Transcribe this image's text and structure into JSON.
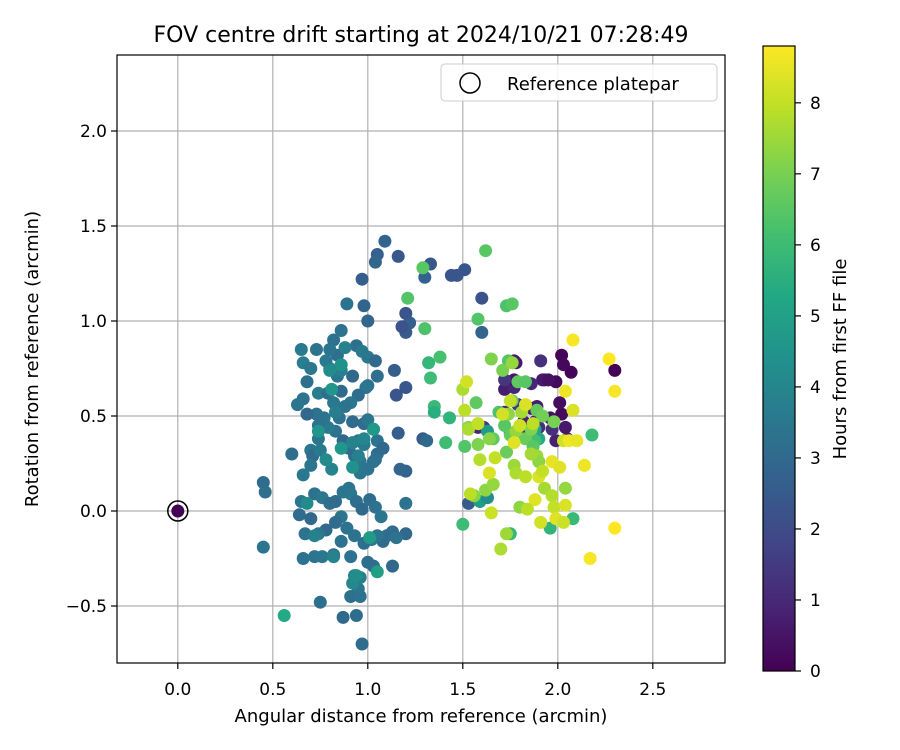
{
  "chart_data": {
    "type": "scatter",
    "title": "FOV centre drift starting at 2024/10/21 07:28:49",
    "xlabel": "Angular distance from reference (arcmin)",
    "ylabel": "Rotation from reference (arcmin)",
    "xlim": [
      -0.32,
      2.88
    ],
    "ylim": [
      -0.8,
      2.4
    ],
    "xticks": [
      0.0,
      0.5,
      1.0,
      1.5,
      2.0,
      2.5
    ],
    "yticks": [
      -0.5,
      0.0,
      0.5,
      1.0,
      1.5,
      2.0
    ],
    "xtick_labels": [
      "0.0",
      "0.5",
      "1.0",
      "1.5",
      "2.0",
      "2.5"
    ],
    "ytick_labels": [
      "−0.5",
      "0.0",
      "0.5",
      "1.0",
      "1.5",
      "2.0"
    ],
    "grid": true,
    "legend": {
      "placement": "top-right",
      "entries": [
        "Reference platepar"
      ]
    },
    "colorbar": {
      "label": "Hours from first FF file",
      "colormap": "viridis",
      "min": 0,
      "max": 8.8,
      "ticks": [
        0,
        1,
        2,
        3,
        4,
        5,
        6,
        7,
        8
      ],
      "tick_labels": [
        "0",
        "1",
        "2",
        "3",
        "4",
        "5",
        "6",
        "7",
        "8"
      ]
    },
    "reference_point": {
      "x": 0.0,
      "y": 0.0,
      "hours": 0.0
    },
    "points": [
      [
        1.99,
        0.68,
        0.2
      ],
      [
        2.02,
        0.82,
        0.1
      ],
      [
        2.07,
        0.73,
        0.1
      ],
      [
        2.03,
        0.77,
        0.2
      ],
      [
        1.93,
        0.69,
        0.5
      ],
      [
        2.01,
        0.57,
        0.3
      ],
      [
        1.92,
        0.69,
        0.6
      ],
      [
        1.77,
        0.79,
        0.5
      ],
      [
        1.72,
        0.64,
        0.7
      ],
      [
        1.82,
        0.47,
        0.8
      ],
      [
        1.72,
        0.52,
        0.9
      ],
      [
        1.86,
        0.54,
        0.6
      ],
      [
        1.89,
        0.55,
        0.7
      ],
      [
        1.77,
        0.65,
        0.9
      ],
      [
        1.86,
        0.67,
        1.0
      ],
      [
        1.96,
        0.49,
        0.4
      ],
      [
        2.02,
        0.51,
        0.2
      ],
      [
        1.95,
        0.69,
        0.4
      ],
      [
        1.77,
        0.69,
        0.5
      ],
      [
        1.78,
        0.78,
        0.6
      ],
      [
        1.88,
        0.47,
        0.7
      ],
      [
        1.58,
        0.44,
        0.9
      ],
      [
        1.9,
        0.44,
        1.2
      ],
      [
        2.04,
        0.44,
        0.6
      ],
      [
        1.99,
        0.37,
        0.8
      ],
      [
        1.91,
        0.79,
        1.2
      ],
      [
        2.05,
        0.38,
        0.6
      ],
      [
        1.61,
        0.44,
        1.3
      ],
      [
        1.79,
        0.56,
        1.3
      ],
      [
        1.72,
        0.69,
        1.4
      ],
      [
        1.75,
        0.41,
        1.5
      ],
      [
        1.82,
        0.41,
        1.6
      ],
      [
        1.97,
        0.43,
        1.2
      ],
      [
        2.3,
        0.74,
        0.1
      ],
      [
        1.53,
        0.04,
        2.5
      ],
      [
        1.6,
        1.12,
        2.2
      ],
      [
        1.6,
        0.94,
        2.8
      ],
      [
        1.51,
        1.27,
        2.3
      ],
      [
        1.47,
        1.24,
        2.4
      ],
      [
        1.44,
        1.24,
        2.3
      ],
      [
        1.33,
        1.3,
        2.4
      ],
      [
        1.3,
        1.23,
        2.7
      ],
      [
        1.22,
        0.99,
        2.7
      ],
      [
        1.2,
        0.94,
        2.5
      ],
      [
        1.2,
        1.04,
        2.3
      ],
      [
        1.18,
        0.97,
        2.2
      ],
      [
        1.2,
        0.65,
        2.4
      ],
      [
        1.14,
        0.74,
        2.6
      ],
      [
        1.15,
        0.61,
        2.3
      ],
      [
        1.29,
        0.38,
        2.5
      ],
      [
        1.31,
        0.37,
        3.0
      ],
      [
        1.2,
        0.21,
        2.8
      ],
      [
        1.17,
        0.22,
        2.9
      ],
      [
        1.16,
        0.41,
        2.6
      ],
      [
        1.16,
        1.34,
        2.4
      ],
      [
        1.09,
        1.42,
        2.8
      ],
      [
        1.05,
        1.35,
        2.7
      ],
      [
        1.04,
        1.31,
        2.9
      ],
      [
        0.97,
        1.22,
        2.6
      ],
      [
        0.98,
        1.08,
        2.8
      ],
      [
        1.0,
        1.0,
        2.9
      ],
      [
        0.89,
        1.09,
        3.3
      ],
      [
        0.86,
        0.95,
        3.3
      ],
      [
        0.94,
        0.87,
        3.2
      ],
      [
        0.97,
        0.84,
        3.6
      ],
      [
        1.0,
        0.81,
        3.5
      ],
      [
        1.04,
        0.79,
        3.0
      ],
      [
        1.05,
        0.71,
        3.2
      ],
      [
        1.0,
        0.66,
        3.3
      ],
      [
        0.99,
        0.65,
        3.4
      ],
      [
        0.92,
        0.71,
        3.0
      ],
      [
        0.95,
        0.61,
        3.1
      ],
      [
        0.91,
        0.57,
        3.5
      ],
      [
        0.88,
        0.55,
        3.3
      ],
      [
        0.85,
        0.49,
        3.3
      ],
      [
        0.92,
        0.47,
        3.1
      ],
      [
        0.98,
        0.46,
        3.1
      ],
      [
        1.0,
        0.48,
        3.4
      ],
      [
        1.03,
        0.43,
        3.2
      ],
      [
        1.05,
        0.37,
        3.3
      ],
      [
        1.08,
        0.33,
        3.0
      ],
      [
        1.05,
        0.3,
        3.1
      ],
      [
        1.03,
        0.26,
        3.2
      ],
      [
        1.0,
        0.22,
        3.3
      ],
      [
        0.96,
        0.2,
        3.4
      ],
      [
        0.96,
        0.26,
        3.5
      ],
      [
        0.93,
        0.29,
        3.2
      ],
      [
        0.9,
        0.33,
        3.1
      ],
      [
        0.87,
        0.37,
        3.0
      ],
      [
        0.83,
        0.42,
        3.3
      ],
      [
        0.79,
        0.44,
        3.6
      ],
      [
        0.77,
        0.49,
        3.4
      ],
      [
        0.73,
        0.51,
        3.3
      ],
      [
        0.74,
        0.62,
        3.7
      ],
      [
        0.79,
        0.62,
        3.2
      ],
      [
        0.82,
        0.57,
        3.5
      ],
      [
        0.86,
        0.63,
        3.0
      ],
      [
        0.84,
        0.71,
        3.4
      ],
      [
        0.8,
        0.75,
        3.7
      ],
      [
        0.78,
        0.79,
        3.6
      ],
      [
        0.84,
        0.82,
        3.2
      ],
      [
        0.88,
        0.86,
        3.8
      ],
      [
        0.82,
        0.9,
        3.3
      ],
      [
        0.8,
        0.85,
        3.4
      ],
      [
        0.73,
        0.85,
        3.4
      ],
      [
        0.65,
        0.85,
        3.6
      ],
      [
        0.66,
        0.78,
        3.7
      ],
      [
        0.7,
        0.75,
        3.5
      ],
      [
        0.68,
        0.68,
        3.2
      ],
      [
        0.66,
        0.59,
        3.3
      ],
      [
        0.63,
        0.56,
        3.4
      ],
      [
        0.68,
        0.51,
        3.0
      ],
      [
        0.74,
        0.45,
        3.3
      ],
      [
        0.74,
        0.38,
        3.4
      ],
      [
        0.7,
        0.32,
        3.5
      ],
      [
        0.71,
        0.29,
        3.1
      ],
      [
        0.7,
        0.24,
        3.4
      ],
      [
        0.66,
        0.19,
        3.5
      ],
      [
        0.6,
        0.3,
        3.2
      ],
      [
        0.45,
        0.15,
        3.1
      ],
      [
        0.46,
        0.1,
        3.2
      ],
      [
        0.65,
        0.05,
        3.4
      ],
      [
        0.64,
        -0.02,
        3.1
      ],
      [
        0.7,
        -0.04,
        3.0
      ],
      [
        0.72,
        0.09,
        3.3
      ],
      [
        0.76,
        0.07,
        3.5
      ],
      [
        0.8,
        0.04,
        3.2
      ],
      [
        0.83,
        0.05,
        3.1
      ],
      [
        0.87,
        0.1,
        3.4
      ],
      [
        0.9,
        0.12,
        3.3
      ],
      [
        0.91,
        0.09,
        3.5
      ],
      [
        0.94,
        0.05,
        3.2
      ],
      [
        0.97,
        0.01,
        3.0
      ],
      [
        1.01,
        0.06,
        3.1
      ],
      [
        1.04,
        0.02,
        3.3
      ],
      [
        1.07,
        -0.03,
        3.4
      ],
      [
        1.1,
        -0.13,
        3.2
      ],
      [
        1.13,
        -0.11,
        3.1
      ],
      [
        1.2,
        0.04,
        3.3
      ],
      [
        1.2,
        -0.12,
        3.0
      ],
      [
        1.15,
        -0.14,
        3.3
      ],
      [
        1.08,
        -0.16,
        3.1
      ],
      [
        1.05,
        -0.13,
        3.4
      ],
      [
        1.02,
        -0.15,
        3.5
      ],
      [
        0.98,
        -0.17,
        3.2
      ],
      [
        0.93,
        -0.13,
        3.3
      ],
      [
        0.89,
        -0.09,
        3.3
      ],
      [
        0.86,
        -0.03,
        3.4
      ],
      [
        0.83,
        -0.06,
        3.1
      ],
      [
        0.78,
        -0.1,
        3.0
      ],
      [
        0.74,
        -0.12,
        3.5
      ],
      [
        0.67,
        -0.12,
        3.3
      ],
      [
        0.66,
        -0.25,
        3.3
      ],
      [
        0.72,
        -0.24,
        3.4
      ],
      [
        0.76,
        -0.24,
        3.5
      ],
      [
        0.82,
        -0.23,
        3.2
      ],
      [
        0.86,
        -0.16,
        3.3
      ],
      [
        0.91,
        -0.24,
        3.3
      ],
      [
        0.45,
        -0.19,
        3.4
      ],
      [
        1.0,
        -0.27,
        3.2
      ],
      [
        1.03,
        -0.29,
        3.1
      ],
      [
        1.13,
        -0.29,
        3.0
      ],
      [
        1.04,
        0.27,
        3.3
      ],
      [
        0.95,
        0.37,
        3.5
      ],
      [
        0.98,
        0.35,
        3.6
      ],
      [
        0.96,
        -0.35,
        3.7
      ],
      [
        0.93,
        -0.34,
        3.8
      ],
      [
        0.95,
        -0.41,
        3.5
      ],
      [
        0.91,
        -0.45,
        3.2
      ],
      [
        0.96,
        -0.45,
        3.3
      ],
      [
        0.94,
        -0.55,
        3.1
      ],
      [
        0.87,
        -0.56,
        3.0
      ],
      [
        0.75,
        -0.48,
        3.2
      ],
      [
        0.97,
        -0.7,
        3.1
      ],
      [
        0.83,
        0.52,
        3.7
      ],
      [
        0.75,
        0.32,
        3.6
      ],
      [
        0.86,
        0.74,
        3.8
      ],
      [
        0.81,
        0.22,
        3.9
      ],
      [
        0.72,
        -0.13,
        3.8
      ],
      [
        0.82,
        -0.24,
        3.9
      ],
      [
        0.92,
        -0.38,
        4.1
      ],
      [
        0.94,
        -0.34,
        4.3
      ],
      [
        0.92,
        0.36,
        3.9
      ],
      [
        0.98,
        0.38,
        4.0
      ],
      [
        0.95,
        0.29,
        3.8
      ],
      [
        0.78,
        0.27,
        4.2
      ],
      [
        0.68,
        0.04,
        4.2
      ],
      [
        0.74,
        0.42,
        4.5
      ],
      [
        0.81,
        0.64,
        4.6
      ],
      [
        0.86,
        0.77,
        4.4
      ],
      [
        0.8,
        0.74,
        4.2
      ],
      [
        0.86,
        0.33,
        4.6
      ],
      [
        0.92,
        0.23,
        4.4
      ],
      [
        1.03,
        0.43,
        4.7
      ],
      [
        1.05,
        -0.32,
        4.9
      ],
      [
        1.01,
        -0.14,
        4.8
      ],
      [
        0.56,
        -0.55,
        5.3
      ],
      [
        1.59,
        0.05,
        4.9
      ],
      [
        1.63,
        0.07,
        4.3
      ],
      [
        1.63,
        0.42,
        4.8
      ],
      [
        1.88,
        0.43,
        5.2
      ],
      [
        1.9,
        0.38,
        5.3
      ],
      [
        1.96,
        -0.09,
        5.7
      ],
      [
        2.18,
        0.4,
        6.0
      ],
      [
        2.08,
        -0.04,
        5.9
      ],
      [
        1.75,
        -0.12,
        5.8
      ],
      [
        1.5,
        -0.07,
        6.0
      ],
      [
        1.35,
        0.55,
        5.9
      ],
      [
        1.41,
        0.36,
        6.0
      ],
      [
        1.43,
        0.49,
        5.7
      ],
      [
        1.35,
        0.52,
        5.5
      ],
      [
        1.32,
        0.78,
        5.8
      ],
      [
        1.33,
        0.7,
        6.0
      ],
      [
        1.38,
        0.81,
        6.2
      ],
      [
        1.3,
        0.96,
        6.3
      ],
      [
        1.21,
        1.12,
        6.4
      ],
      [
        1.29,
        1.28,
        6.5
      ],
      [
        1.58,
        1.01,
        6.4
      ],
      [
        1.62,
        1.37,
        6.5
      ],
      [
        1.73,
        1.08,
        6.3
      ],
      [
        1.76,
        1.09,
        6.5
      ],
      [
        1.74,
        0.79,
        6.4
      ],
      [
        1.79,
        0.68,
        6.6
      ],
      [
        1.83,
        0.68,
        6.5
      ],
      [
        1.88,
        0.37,
        6.1
      ],
      [
        1.51,
        0.34,
        6.4
      ],
      [
        1.57,
        0.57,
        6.6
      ],
      [
        1.66,
        0.38,
        6.6
      ],
      [
        1.72,
        0.45,
        6.5
      ],
      [
        1.75,
        0.4,
        6.7
      ],
      [
        1.73,
        0.31,
        6.8
      ],
      [
        1.69,
        0.52,
        6.3
      ],
      [
        1.76,
        0.58,
        6.6
      ],
      [
        1.83,
        0.38,
        6.8
      ],
      [
        1.87,
        0.34,
        6.5
      ],
      [
        1.89,
        0.53,
        6.7
      ],
      [
        1.92,
        0.5,
        6.9
      ],
      [
        1.98,
        0.47,
        7.0
      ],
      [
        1.86,
        0.43,
        7.1
      ],
      [
        1.56,
        0.08,
        7.2
      ],
      [
        1.62,
        0.11,
        7.3
      ],
      [
        1.64,
        0.38,
        7.2
      ],
      [
        1.66,
        0.14,
        7.4
      ],
      [
        1.74,
        0.51,
        7.3
      ],
      [
        1.77,
        0.24,
        7.5
      ],
      [
        1.8,
        0.02,
        7.3
      ],
      [
        1.53,
        0.44,
        7.2
      ],
      [
        1.58,
        0.35,
        7.1
      ],
      [
        1.65,
        0.8,
        7.1
      ],
      [
        1.71,
        0.74,
        7.0
      ],
      [
        1.78,
        0.42,
        7.4
      ],
      [
        1.76,
        0.78,
        7.4
      ],
      [
        1.81,
        0.52,
        7.6
      ],
      [
        1.89,
        0.29,
        7.5
      ],
      [
        1.9,
        0.26,
        7.3
      ],
      [
        1.93,
        0.12,
        7.6
      ],
      [
        1.97,
        0.08,
        7.8
      ],
      [
        2.04,
        0.12,
        7.4
      ],
      [
        1.7,
        -0.2,
        7.7
      ],
      [
        1.73,
        -0.12,
        7.5
      ],
      [
        1.78,
        0.2,
        7.7
      ],
      [
        1.83,
        0.18,
        7.9
      ],
      [
        1.86,
        0.3,
        7.6
      ],
      [
        1.5,
        0.64,
        7.7
      ],
      [
        1.51,
        0.53,
        7.9
      ],
      [
        1.53,
        0.43,
        7.7
      ],
      [
        1.59,
        0.27,
        7.8
      ],
      [
        1.58,
        0.46,
        8.0
      ],
      [
        1.67,
        0.28,
        8.0
      ],
      [
        1.71,
        0.51,
        8.2
      ],
      [
        1.75,
        0.58,
        8.0
      ],
      [
        1.8,
        0.45,
        8.1
      ],
      [
        1.83,
        0.56,
        8.3
      ],
      [
        1.87,
        0.46,
        7.9
      ],
      [
        1.9,
        0.18,
        8.3
      ],
      [
        1.92,
        0.21,
        8.0
      ],
      [
        1.88,
        0.06,
        8.4
      ],
      [
        1.91,
        -0.06,
        8.2
      ],
      [
        1.98,
        0.02,
        8.0
      ],
      [
        1.99,
        -0.04,
        8.4
      ],
      [
        2.03,
        -0.06,
        8.1
      ],
      [
        2.04,
        0.03,
        8.3
      ],
      [
        1.97,
        0.26,
        8.5
      ],
      [
        2.01,
        0.23,
        8.4
      ],
      [
        2.03,
        0.37,
        8.2
      ],
      [
        2.06,
        0.37,
        8.6
      ],
      [
        2.1,
        0.37,
        8.5
      ],
      [
        2.08,
        0.53,
        8.3
      ],
      [
        2.14,
        0.24,
        8.6
      ],
      [
        2.04,
        0.63,
        8.6
      ],
      [
        2.08,
        0.9,
        8.7
      ],
      [
        2.27,
        0.8,
        8.8
      ],
      [
        2.3,
        0.63,
        8.7
      ],
      [
        2.3,
        -0.09,
        8.8
      ],
      [
        2.17,
        -0.25,
        8.7
      ],
      [
        1.52,
        0.68,
        8.2
      ],
      [
        1.64,
        0.2,
        8.3
      ],
      [
        1.54,
        0.09,
        7.9
      ],
      [
        1.65,
        -0.01,
        8.1
      ],
      [
        1.84,
        0.01,
        7.9
      ],
      [
        1.77,
        0.36,
        8.4
      ]
    ]
  }
}
